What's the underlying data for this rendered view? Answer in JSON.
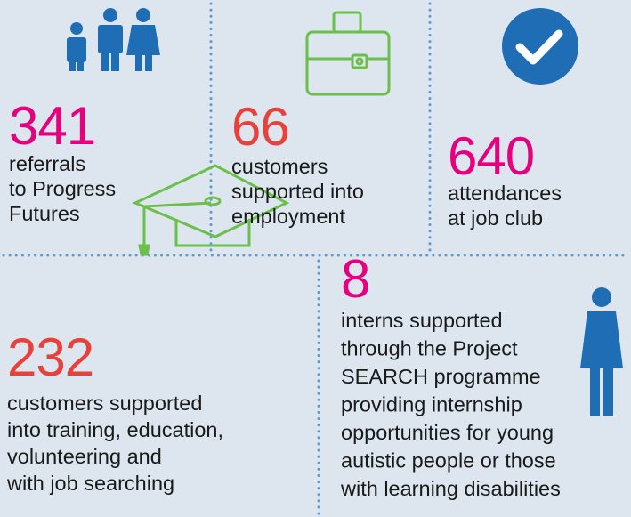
{
  "stats": [
    {
      "number": "341",
      "lines": [
        "referrals",
        "to Progress",
        "Futures"
      ]
    },
    {
      "number": "66",
      "lines": [
        "customers",
        "supported into",
        "employment"
      ]
    },
    {
      "number": "640",
      "lines": [
        "attendances",
        "at job club"
      ]
    },
    {
      "number": "232",
      "lines": [
        "customers supported",
        "into training, education,",
        "volunteering and",
        "with job searching"
      ]
    },
    {
      "number": "8",
      "lines": [
        "interns supported",
        "through the Project",
        "SEARCH programme",
        "providing internship",
        "opportunities for young",
        "autistic people or those",
        "with learning disabilities"
      ]
    }
  ]
}
